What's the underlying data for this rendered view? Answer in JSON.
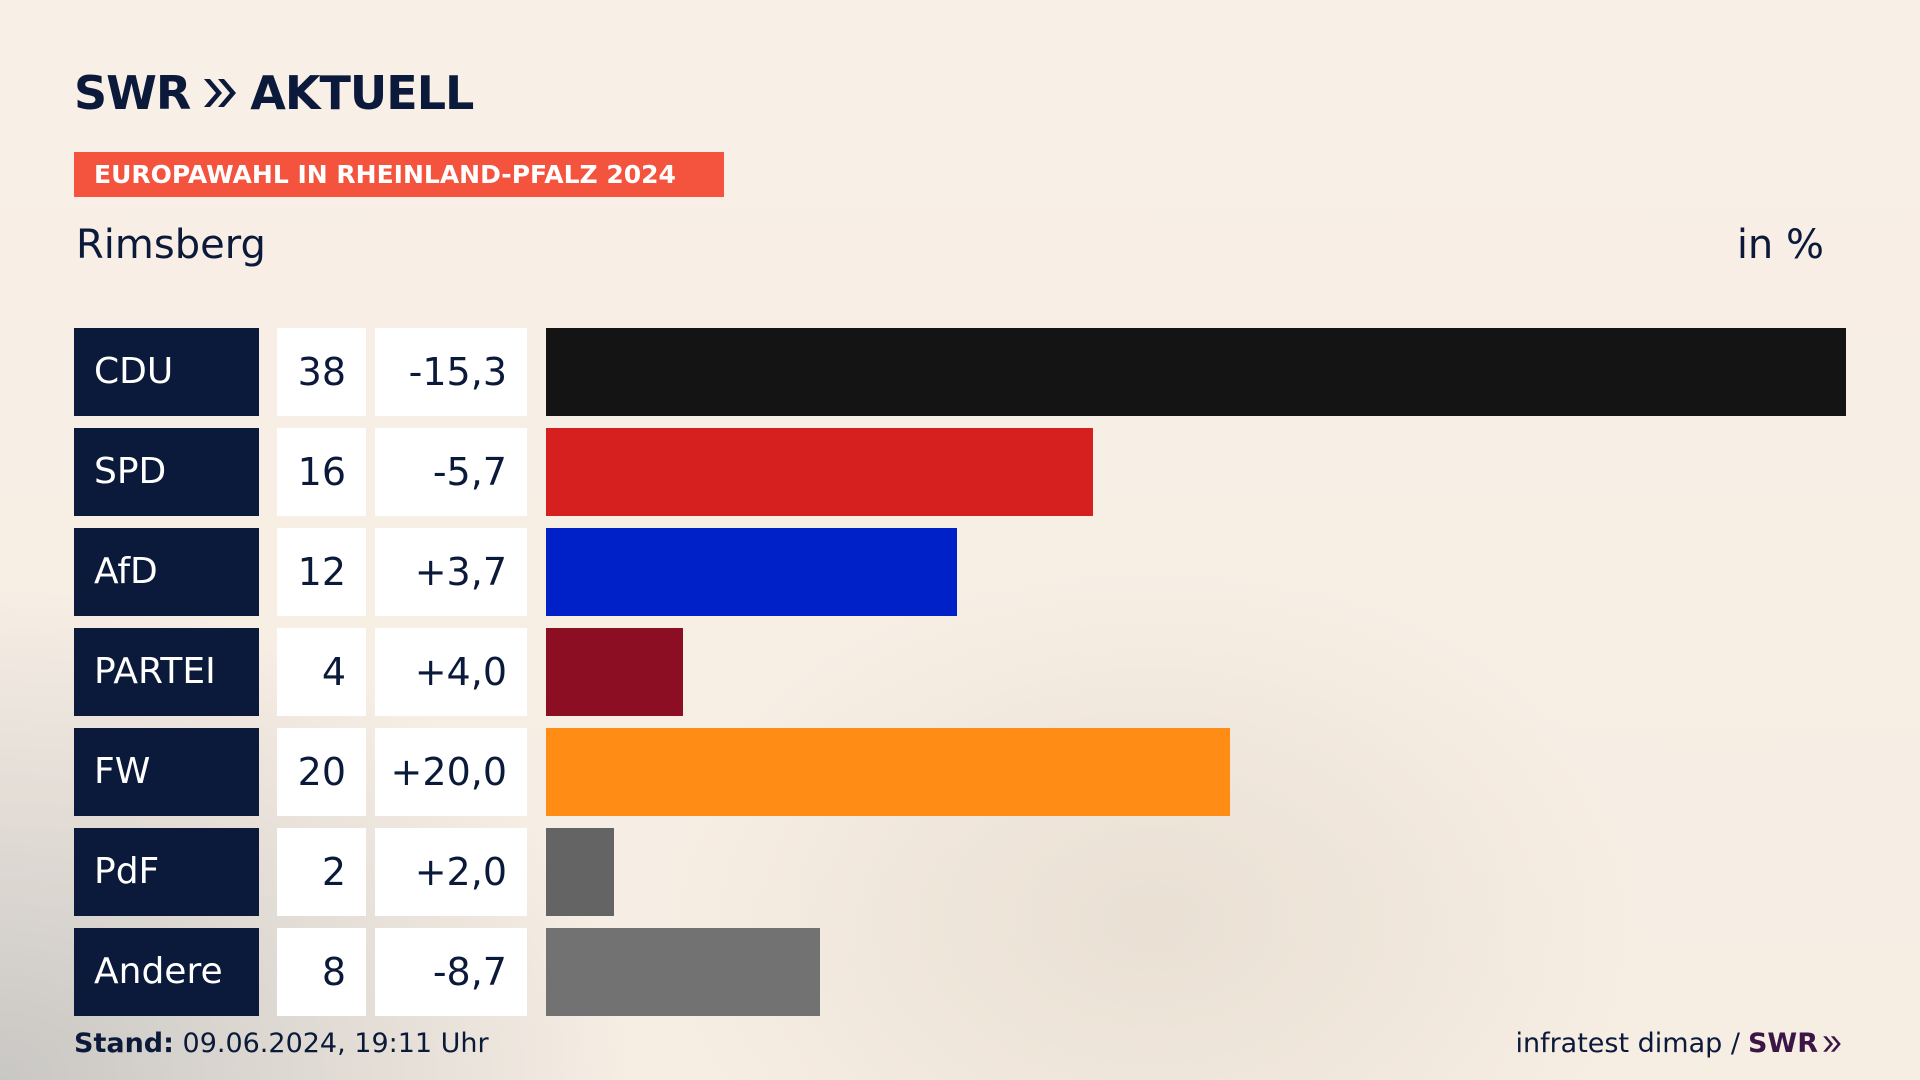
{
  "header": {
    "logo_text_left": "SWR",
    "logo_text_right": "AKTUELL",
    "banner": "EUROPAWAHL IN RHEINLAND-PFALZ 2024",
    "subtitle": "Rimsberg",
    "unit": "in %"
  },
  "colors": {
    "banner": "#f4533e",
    "navy": "#0b1a3a"
  },
  "chart_data": {
    "type": "bar",
    "title": "EUROPAWAHL IN RHEINLAND-PFALZ 2024",
    "subtitle": "Rimsberg",
    "unit": "in %",
    "categories": [
      "CDU",
      "SPD",
      "AfD",
      "PARTEI",
      "FW",
      "PdF",
      "Andere"
    ],
    "values": [
      38,
      16,
      12,
      4,
      20,
      2,
      8
    ],
    "value_labels": [
      "38",
      "16",
      "12",
      "4",
      "20",
      "2",
      "8"
    ],
    "diff_labels": [
      "-15,3",
      "-5,7",
      "+3,7",
      "+4,0",
      "+20,0",
      "+2,0",
      "-8,7"
    ],
    "colors": [
      "#141414",
      "#d61f1f",
      "#0020c8",
      "#8c0e22",
      "#fe8c15",
      "#646464",
      "#727272"
    ],
    "xlim": [
      0,
      38
    ]
  },
  "footer": {
    "stand_label": "Stand:",
    "stand_value": "09.06.2024, 19:11 Uhr",
    "source": "infratest dimap /",
    "source_logo": "SWR"
  }
}
